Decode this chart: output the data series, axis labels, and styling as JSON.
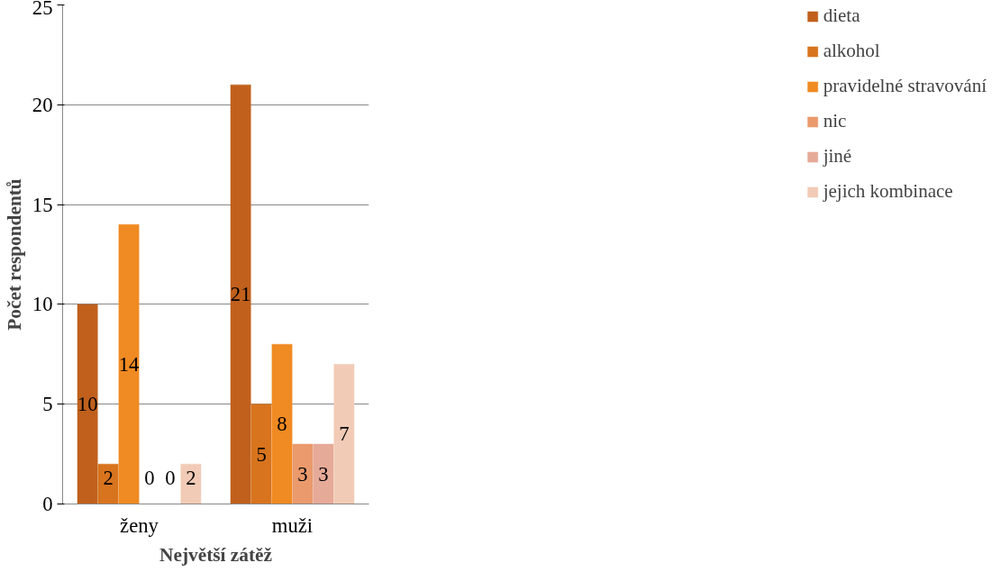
{
  "chart_data": {
    "type": "bar",
    "xlabel": "Největší zátěž",
    "ylabel": "Počet respondentů",
    "categories": [
      "ženy",
      "muži"
    ],
    "series": [
      {
        "name": "dieta",
        "color": "#c0601c",
        "values": [
          10,
          21
        ]
      },
      {
        "name": "alkohol",
        "color": "#d8741e",
        "values": [
          2,
          5
        ]
      },
      {
        "name": "pravidelné stravování",
        "color": "#f08a22",
        "values": [
          14,
          8
        ]
      },
      {
        "name": "nic",
        "color": "#ea9a6c",
        "values": [
          0,
          3
        ]
      },
      {
        "name": "jiné",
        "color": "#e6aa98",
        "values": [
          0,
          3
        ]
      },
      {
        "name": "jejich kombinace",
        "color": "#f2cbb6",
        "values": [
          2,
          7
        ]
      }
    ],
    "ylim": [
      0,
      25
    ],
    "yticks": [
      0,
      5,
      10,
      15,
      20,
      25
    ],
    "grid": "y",
    "legend": "right",
    "data_labels": true
  }
}
